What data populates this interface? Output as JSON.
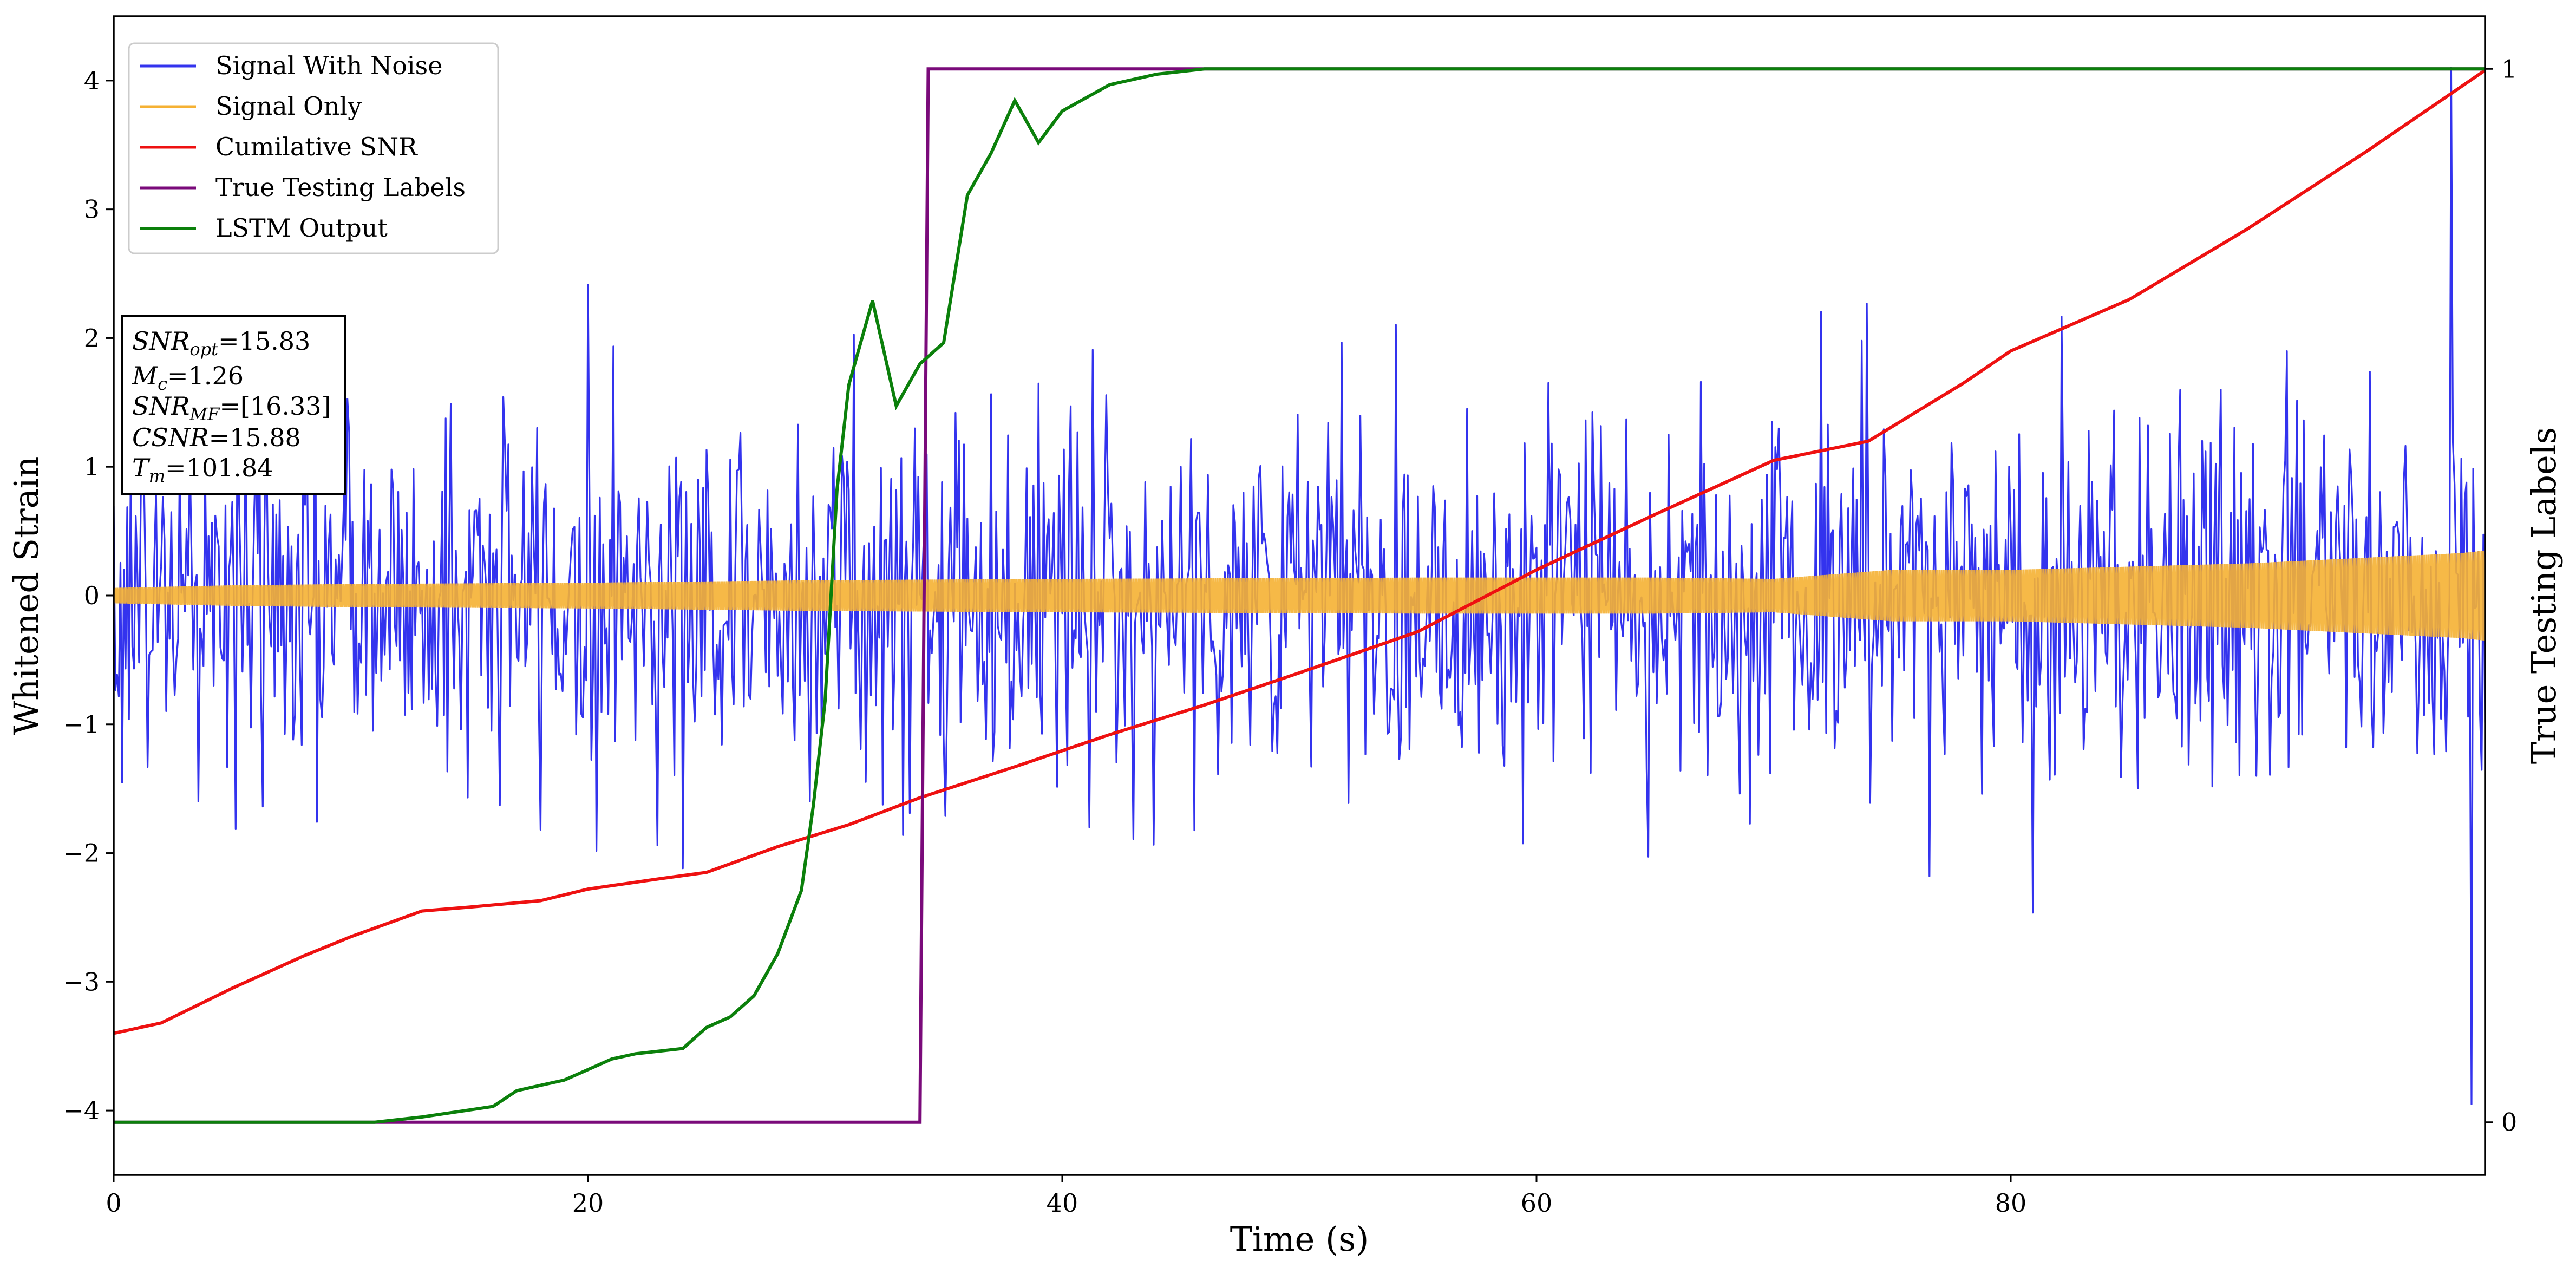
{
  "chart_data": {
    "type": "line",
    "xlabel": "Time (s)",
    "ylabel": "Whitened Strain",
    "ylabel_right": "True Testing Labels",
    "xlim": [
      0,
      100
    ],
    "ylim": [
      -4.5,
      4.5
    ],
    "ylim_right": [
      -0.05,
      1.05
    ],
    "x_ticks": [
      0,
      20,
      40,
      60,
      80
    ],
    "y_ticks": [
      -4,
      -3,
      -2,
      -1,
      0,
      1,
      2,
      3,
      4
    ],
    "y_ticks_right": [
      0,
      1
    ],
    "legend": {
      "location": "top-left",
      "entries": [
        {
          "label": "Signal With Noise",
          "color": "#3333ee"
        },
        {
          "label": "Signal Only",
          "color": "#f5b133"
        },
        {
          "label": "Cumilative SNR",
          "color": "#ee1111"
        },
        {
          "label": "True Testing Labels",
          "color": "#7a0a7a"
        },
        {
          "label": "LSTM Output",
          "color": "#0b800b"
        }
      ]
    },
    "annotation": {
      "location": "left",
      "lines": [
        {
          "base": "SNR",
          "sub": "opt",
          "value": "=15.83"
        },
        {
          "base": "M",
          "sub": "c",
          "value": "=1.26"
        },
        {
          "base": "SNR",
          "sub": "MF",
          "value": "=[16.33]"
        },
        {
          "base": "CSNR",
          "sub": "",
          "value": "=15.88"
        },
        {
          "base": "T",
          "sub": "m",
          "value": "=101.84"
        }
      ]
    },
    "series": [
      {
        "name": "Signal With Noise",
        "axis": "left",
        "color": "#3333ee",
        "kind": "noise",
        "noise_sigma": 0.75,
        "typical_range": [
          -2.5,
          2.6
        ],
        "peak_max": 4.1,
        "peak_min": -3.95,
        "n_samples": 1400
      },
      {
        "name": "Signal Only",
        "axis": "left",
        "color": "#f5b133",
        "kind": "oscillation",
        "envelope_x": [
          0,
          5,
          10,
          20,
          30,
          40,
          55,
          65,
          70,
          75,
          80,
          90,
          99,
          100
        ],
        "envelope": [
          0.06,
          0.08,
          0.09,
          0.1,
          0.12,
          0.13,
          0.14,
          0.14,
          0.13,
          0.2,
          0.2,
          0.25,
          0.33,
          0.35
        ]
      },
      {
        "name": "Cumilative SNR",
        "axis": "left",
        "color": "#ee1111",
        "x": [
          0,
          2,
          5,
          8,
          10,
          13,
          15,
          18,
          20,
          23,
          25,
          28,
          31,
          34,
          38,
          42,
          46,
          50,
          55,
          60,
          65,
          70,
          74,
          78,
          80,
          85,
          90,
          95,
          100
        ],
        "y": [
          -3.4,
          -3.32,
          -3.05,
          -2.8,
          -2.65,
          -2.45,
          -2.42,
          -2.37,
          -2.28,
          -2.2,
          -2.15,
          -1.95,
          -1.78,
          -1.57,
          -1.33,
          -1.08,
          -0.85,
          -0.6,
          -0.28,
          0.2,
          0.63,
          1.05,
          1.2,
          1.65,
          1.9,
          2.3,
          2.85,
          3.45,
          4.08
        ]
      },
      {
        "name": "True Testing Labels",
        "axis": "right",
        "color": "#7a0a7a",
        "x": [
          0,
          34.0,
          34.35,
          100
        ],
        "y": [
          0,
          0,
          1,
          1
        ]
      },
      {
        "name": "LSTM Output",
        "axis": "right",
        "color": "#0b800b",
        "x": [
          0,
          11,
          13,
          14.5,
          16,
          17,
          18,
          19,
          20,
          21,
          22,
          24,
          25,
          26,
          27,
          28,
          29,
          29.5,
          30,
          30.5,
          31,
          32,
          33,
          34,
          35,
          36,
          37,
          38,
          38.5,
          39,
          40,
          42,
          44,
          46,
          50,
          58,
          100
        ],
        "y": [
          0,
          0,
          0.005,
          0.01,
          0.015,
          0.03,
          0.035,
          0.04,
          0.05,
          0.06,
          0.065,
          0.07,
          0.09,
          0.1,
          0.12,
          0.16,
          0.22,
          0.3,
          0.4,
          0.6,
          0.7,
          0.78,
          0.68,
          0.72,
          0.74,
          0.88,
          0.92,
          0.97,
          0.95,
          0.93,
          0.96,
          0.985,
          0.995,
          1.0,
          1.0,
          1.0,
          1.0
        ]
      }
    ]
  }
}
